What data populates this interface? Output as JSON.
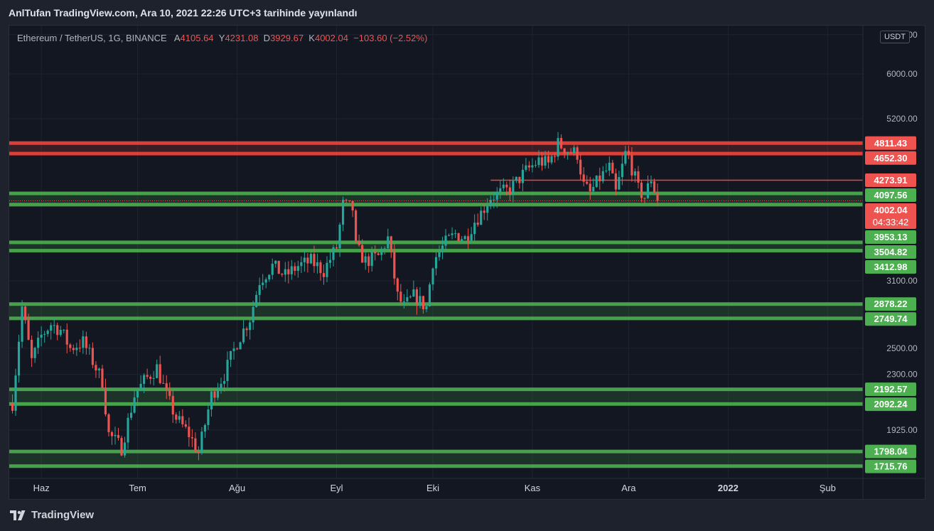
{
  "header": {
    "published": "AnlTufan TradingView.com, Ara 10, 2021 22:26 UTC+3 tarihinde yayınlandı"
  },
  "legend": {
    "symbol": "Ethereum / TetherUS, 1G, BINANCE",
    "open_label": "A",
    "open": "4105.64",
    "high_label": "Y",
    "high": "4231.08",
    "low_label": "D",
    "low": "3929.67",
    "close_label": "K",
    "close": "4002.04",
    "change": "−103.60 (−2.52%)"
  },
  "currency": "USDT",
  "footer": {
    "brand": "TradingView",
    "logo_icon": "tradingview-logo-icon"
  },
  "colors": {
    "bull": "#26a69a",
    "bear": "#ef5350",
    "support": "#4caf50",
    "resistance": "#f44336",
    "bg": "#131722"
  },
  "chart_data": {
    "type": "candlestick",
    "scale": "log",
    "ylim": [
      1650,
      7000
    ],
    "x_range": [
      "2021-05-22",
      "2022-02-12"
    ],
    "y_ticks": [
      {
        "value": 1925,
        "label": "1925.00"
      },
      {
        "value": 2300,
        "label": "2300.00"
      },
      {
        "value": 2500,
        "label": "2500.00"
      },
      {
        "value": 3100,
        "label": "3100.00"
      },
      {
        "value": 5200,
        "label": "5200.00"
      },
      {
        "value": 6000,
        "label": "6000.00"
      },
      {
        "value": 6800,
        "label": "6800.00"
      }
    ],
    "x_ticks": [
      {
        "date": "2021-06-01",
        "label": "Haz",
        "bold": false
      },
      {
        "date": "2021-07-01",
        "label": "Tem",
        "bold": false
      },
      {
        "date": "2021-08-01",
        "label": "Ağu",
        "bold": false
      },
      {
        "date": "2021-09-01",
        "label": "Eyl",
        "bold": false
      },
      {
        "date": "2021-10-01",
        "label": "Eki",
        "bold": false
      },
      {
        "date": "2021-11-01",
        "label": "Kas",
        "bold": false
      },
      {
        "date": "2021-12-01",
        "label": "Ara",
        "bold": false
      },
      {
        "date": "2022-01-01",
        "label": "2022",
        "bold": true
      },
      {
        "date": "2022-02-01",
        "label": "Şub",
        "bold": false
      }
    ],
    "zones": [
      {
        "low": 4652.3,
        "high": 4811.43,
        "kind": "resistance"
      },
      {
        "low": 3953.13,
        "high": 4097.56,
        "kind": "support"
      },
      {
        "low": 3412.98,
        "high": 3504.82,
        "kind": "support"
      },
      {
        "low": 2749.74,
        "high": 2878.22,
        "kind": "support"
      },
      {
        "low": 2092.24,
        "high": 2192.57,
        "kind": "support"
      },
      {
        "low": 1715.76,
        "high": 1798.04,
        "kind": "support"
      }
    ],
    "hline": {
      "value": 4273.91,
      "label": "4273.91",
      "from": "2021-10-19"
    },
    "current_price": {
      "value": 4002.04,
      "label": "4002.04",
      "countdown": "04:33:42"
    },
    "price_labels": [
      {
        "value": 4811.43,
        "label": "4811.43",
        "kind": "resistance"
      },
      {
        "value": 4652.3,
        "label": "4652.30",
        "kind": "resistance"
      },
      {
        "value": 4273.91,
        "label": "4273.91",
        "kind": "resistance"
      },
      {
        "value": 4097.56,
        "label": "4097.56",
        "kind": "support"
      },
      {
        "value": 3953.13,
        "label": "3953.13",
        "kind": "support"
      },
      {
        "value": 3504.82,
        "label": "3504.82",
        "kind": "support"
      },
      {
        "value": 3412.98,
        "label": "3412.98",
        "kind": "support"
      },
      {
        "value": 2878.22,
        "label": "2878.22",
        "kind": "support"
      },
      {
        "value": 2749.74,
        "label": "2749.74",
        "kind": "support"
      },
      {
        "value": 2192.57,
        "label": "2192.57",
        "kind": "support"
      },
      {
        "value": 2092.24,
        "label": "2092.24",
        "kind": "support"
      },
      {
        "value": 1798.04,
        "label": "1798.04",
        "kind": "support"
      },
      {
        "value": 1715.76,
        "label": "1715.76",
        "kind": "support"
      }
    ],
    "series_start": "2021-05-23",
    "close_path": [
      [
        "2021-05-23",
        2100
      ],
      [
        "2021-05-26",
        2850
      ],
      [
        "2021-05-29",
        2400
      ],
      [
        "2021-06-01",
        2600
      ],
      [
        "2021-06-04",
        2700
      ],
      [
        "2021-06-07",
        2650
      ],
      [
        "2021-06-10",
        2500
      ],
      [
        "2021-06-14",
        2550
      ],
      [
        "2021-06-17",
        2400
      ],
      [
        "2021-06-20",
        2250
      ],
      [
        "2021-06-22",
        1900
      ],
      [
        "2021-06-26",
        1820
      ],
      [
        "2021-06-30",
        2150
      ],
      [
        "2021-07-03",
        2250
      ],
      [
        "2021-07-07",
        2350
      ],
      [
        "2021-07-10",
        2150
      ],
      [
        "2021-07-13",
        2000
      ],
      [
        "2021-07-17",
        1900
      ],
      [
        "2021-07-20",
        1790
      ],
      [
        "2021-07-24",
        2150
      ],
      [
        "2021-07-28",
        2300
      ],
      [
        "2021-08-01",
        2550
      ],
      [
        "2021-08-05",
        2750
      ],
      [
        "2021-08-08",
        3100
      ],
      [
        "2021-08-12",
        3250
      ],
      [
        "2021-08-16",
        3150
      ],
      [
        "2021-08-20",
        3250
      ],
      [
        "2021-08-24",
        3300
      ],
      [
        "2021-08-28",
        3200
      ],
      [
        "2021-09-01",
        3450
      ],
      [
        "2021-09-03",
        3950
      ],
      [
        "2021-09-06",
        3900
      ],
      [
        "2021-09-07",
        3450
      ],
      [
        "2021-09-10",
        3300
      ],
      [
        "2021-09-14",
        3350
      ],
      [
        "2021-09-17",
        3550
      ],
      [
        "2021-09-20",
        2950
      ],
      [
        "2021-09-22",
        2850
      ],
      [
        "2021-09-25",
        2950
      ],
      [
        "2021-09-29",
        2850
      ],
      [
        "2021-10-01",
        3300
      ],
      [
        "2021-10-05",
        3500
      ],
      [
        "2021-10-08",
        3600
      ],
      [
        "2021-10-11",
        3550
      ],
      [
        "2021-10-14",
        3750
      ],
      [
        "2021-10-16",
        3850
      ],
      [
        "2021-10-19",
        4050
      ],
      [
        "2021-10-22",
        4100
      ],
      [
        "2021-10-25",
        4150
      ],
      [
        "2021-10-28",
        4300
      ],
      [
        "2021-10-30",
        4400
      ],
      [
        "2021-11-03",
        4550
      ],
      [
        "2021-11-06",
        4500
      ],
      [
        "2021-11-09",
        4800
      ],
      [
        "2021-11-12",
        4700
      ],
      [
        "2021-11-15",
        4650
      ],
      [
        "2021-11-17",
        4200
      ],
      [
        "2021-11-19",
        4100
      ],
      [
        "2021-11-22",
        4300
      ],
      [
        "2021-11-25",
        4450
      ],
      [
        "2021-11-27",
        4100
      ],
      [
        "2021-11-30",
        4650
      ],
      [
        "2021-12-01",
        4600
      ],
      [
        "2021-12-04",
        4150
      ],
      [
        "2021-12-06",
        4050
      ],
      [
        "2021-12-08",
        4300
      ],
      [
        "2021-12-10",
        4002
      ]
    ]
  }
}
